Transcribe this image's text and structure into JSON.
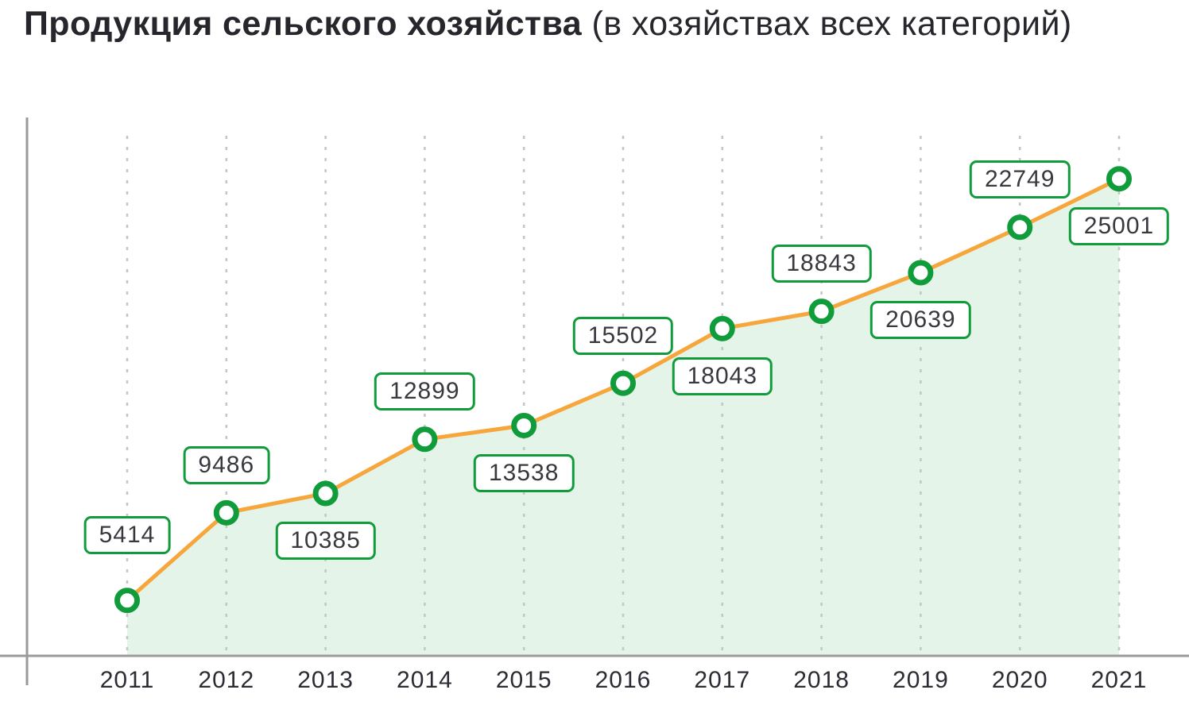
{
  "header": {
    "title": "Продукция сельского хозяйства",
    "subtitle": "(в хозяйствах всех категорий)"
  },
  "chart_data": {
    "type": "line",
    "title": "Продукция сельского хозяйства (в хозяйствах всех категорий)",
    "xlabel": "",
    "ylabel": "",
    "categories": [
      "2011",
      "2012",
      "2013",
      "2014",
      "2015",
      "2016",
      "2017",
      "2018",
      "2019",
      "2020",
      "2021"
    ],
    "series": [
      {
        "name": "Продукция сельского хозяйства",
        "values": [
          5414,
          9486,
          10385,
          12899,
          13538,
          15502,
          18043,
          18843,
          20639,
          22749,
          25001
        ]
      }
    ],
    "data_labels": true,
    "label_positions": [
      "above",
      "above",
      "below",
      "above",
      "below",
      "above",
      "below",
      "above",
      "below",
      "above",
      "below"
    ],
    "ylim": [
      2840,
      27000
    ],
    "area": true,
    "grid": "vertical-dashed",
    "legend": "none",
    "marker": "open-circle",
    "colors": {
      "line": "#F7A63C",
      "marker_ring": "#119C3B",
      "marker_fill": "#FFFFFF",
      "area_fill": "rgba(17,156,59,0.11)",
      "gridline": "#C5C5C5",
      "axis": "#9A9A9A",
      "label_border": "#119C3B",
      "label_text": "#38383E",
      "axis_text": "#2B2B33",
      "title_text": "#26262C"
    }
  }
}
